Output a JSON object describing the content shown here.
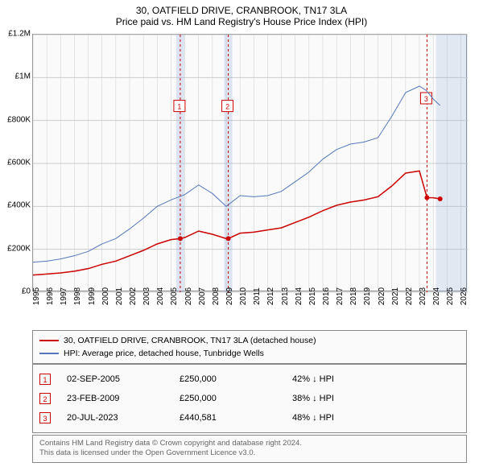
{
  "title": "30, OATFIELD DRIVE, CRANBROOK, TN17 3LA",
  "subtitle": "Price paid vs. HM Land Registry's House Price Index (HPI)",
  "chart": {
    "type": "line",
    "background_color": "#fafafa",
    "grid_color": "#cccccc",
    "xlim": [
      1995,
      2026.5
    ],
    "ylim": [
      0,
      1200000
    ],
    "ytick_step": 200000,
    "yticks": [
      "£0",
      "£200K",
      "£400K",
      "£600K",
      "£800K",
      "£1M",
      "£1.2M"
    ],
    "xticks": [
      1995,
      1996,
      1997,
      1998,
      1999,
      2000,
      2001,
      2002,
      2003,
      2004,
      2005,
      2006,
      2007,
      2008,
      2009,
      2010,
      2011,
      2012,
      2013,
      2014,
      2015,
      2016,
      2017,
      2018,
      2019,
      2020,
      2021,
      2022,
      2023,
      2024,
      2025,
      2026
    ],
    "markers": [
      {
        "num": "1",
        "year": 2005.67,
        "label_y": 0.28,
        "band_highlight": true
      },
      {
        "num": "2",
        "year": 2009.15,
        "label_y": 0.28,
        "band_highlight": true
      },
      {
        "num": "3",
        "year": 2023.55,
        "label_y": 0.25,
        "band_highlight": false
      }
    ],
    "end_band": {
      "start": 2024.2,
      "end": 2026.5
    },
    "series": [
      {
        "name": "price_paid",
        "color": "#cc0000",
        "width": 1.5,
        "points": [
          [
            1995,
            80000
          ],
          [
            1996,
            85000
          ],
          [
            1997,
            90000
          ],
          [
            1998,
            98000
          ],
          [
            1999,
            110000
          ],
          [
            2000,
            130000
          ],
          [
            2001,
            145000
          ],
          [
            2002,
            170000
          ],
          [
            2003,
            195000
          ],
          [
            2004,
            225000
          ],
          [
            2005,
            245000
          ],
          [
            2005.67,
            250000
          ],
          [
            2006,
            255000
          ],
          [
            2007,
            285000
          ],
          [
            2008,
            270000
          ],
          [
            2009,
            250000
          ],
          [
            2009.15,
            250000
          ],
          [
            2010,
            275000
          ],
          [
            2011,
            280000
          ],
          [
            2012,
            290000
          ],
          [
            2013,
            300000
          ],
          [
            2014,
            325000
          ],
          [
            2015,
            350000
          ],
          [
            2016,
            380000
          ],
          [
            2017,
            405000
          ],
          [
            2018,
            420000
          ],
          [
            2019,
            430000
          ],
          [
            2020,
            445000
          ],
          [
            2021,
            495000
          ],
          [
            2022,
            555000
          ],
          [
            2023,
            565000
          ],
          [
            2023.55,
            440581
          ],
          [
            2024,
            440000
          ],
          [
            2024.5,
            435000
          ]
        ],
        "dots": [
          [
            2005.67,
            250000
          ],
          [
            2009.15,
            250000
          ],
          [
            2023.55,
            440581
          ],
          [
            2024.5,
            435000
          ]
        ]
      },
      {
        "name": "hpi",
        "color": "#5577bb",
        "width": 1,
        "points": [
          [
            1995,
            140000
          ],
          [
            1996,
            145000
          ],
          [
            1997,
            155000
          ],
          [
            1998,
            170000
          ],
          [
            1999,
            190000
          ],
          [
            2000,
            225000
          ],
          [
            2001,
            250000
          ],
          [
            2002,
            295000
          ],
          [
            2003,
            345000
          ],
          [
            2004,
            400000
          ],
          [
            2005,
            430000
          ],
          [
            2006,
            455000
          ],
          [
            2007,
            500000
          ],
          [
            2008,
            460000
          ],
          [
            2009,
            400000
          ],
          [
            2010,
            450000
          ],
          [
            2011,
            445000
          ],
          [
            2012,
            450000
          ],
          [
            2013,
            470000
          ],
          [
            2014,
            515000
          ],
          [
            2015,
            560000
          ],
          [
            2016,
            620000
          ],
          [
            2017,
            665000
          ],
          [
            2018,
            690000
          ],
          [
            2019,
            700000
          ],
          [
            2020,
            720000
          ],
          [
            2021,
            820000
          ],
          [
            2022,
            930000
          ],
          [
            2023,
            960000
          ],
          [
            2023.5,
            940000
          ],
          [
            2024,
            900000
          ],
          [
            2024.5,
            870000
          ]
        ]
      }
    ]
  },
  "legend": [
    {
      "color": "#cc0000",
      "label": "30, OATFIELD DRIVE, CRANBROOK, TN17 3LA (detached house)"
    },
    {
      "color": "#5577bb",
      "label": "HPI: Average price, detached house, Tunbridge Wells"
    }
  ],
  "sales": [
    {
      "num": "1",
      "date": "02-SEP-2005",
      "price": "£250,000",
      "pct": "42% ↓ HPI"
    },
    {
      "num": "2",
      "date": "23-FEB-2009",
      "price": "£250,000",
      "pct": "38% ↓ HPI"
    },
    {
      "num": "3",
      "date": "20-JUL-2023",
      "price": "£440,581",
      "pct": "48% ↓ HPI"
    }
  ],
  "footer": {
    "line1": "Contains HM Land Registry data © Crown copyright and database right 2024.",
    "line2": "This data is licensed under the Open Government Licence v3.0."
  }
}
